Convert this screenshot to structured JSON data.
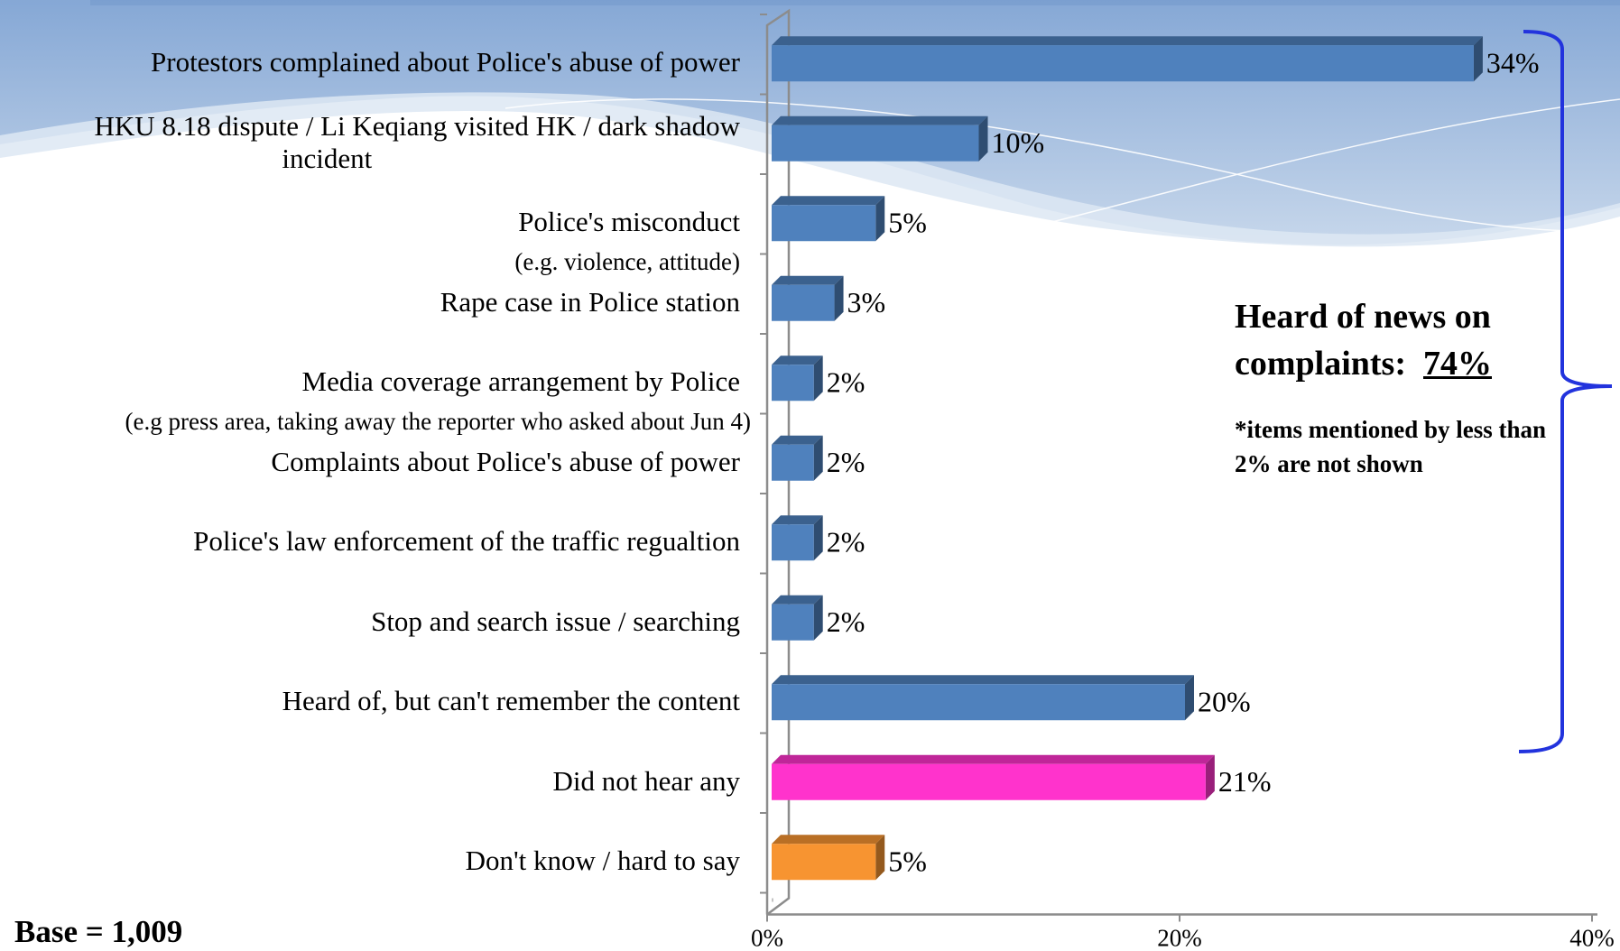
{
  "chart_data": {
    "type": "bar",
    "orientation": "horizontal",
    "categories": [
      "Protestors complained about Police's abuse of power",
      "HKU 8.18 dispute / Li Keqiang visited HK / dark shadow incident",
      "Police's misconduct",
      "Rape case in Police station",
      "Media coverage arrangement by Police",
      "Complaints about Police's abuse of power",
      "Police's law enforcement of the traffic regualtion",
      "Stop and search issue / searching",
      "Heard of, but can't remember the content",
      "Did not hear any",
      "Don't know / hard to say"
    ],
    "category_label_lines": [
      [
        "Protestors complained about Police's abuse of power"
      ],
      [
        "HKU 8.18 dispute / Li Keqiang visited HK / dark shadow",
        "incident"
      ],
      [
        "Police's misconduct"
      ],
      [
        "Rape case in Police station"
      ],
      [
        "Media coverage arrangement by Police"
      ],
      [
        "Complaints about Police's abuse of power"
      ],
      [
        "Police's law enforcement of the traffic regualtion"
      ],
      [
        "Stop and search issue / searching"
      ],
      [
        "Heard of, but can't remember the content"
      ],
      [
        "Did not hear any"
      ],
      [
        "Don't know / hard to say"
      ]
    ],
    "sub_labels": [
      {
        "text": "(e.g. violence, attitude)",
        "after_index": 2
      },
      {
        "text": "(e.g press area, taking away the reporter who asked about Jun 4)",
        "after_index": 4
      }
    ],
    "values": [
      34,
      10,
      5,
      3,
      2,
      2,
      2,
      2,
      20,
      21,
      5
    ],
    "value_labels": [
      "34%",
      "10%",
      "5%",
      "3%",
      "2%",
      "2%",
      "2%",
      "2%",
      "20%",
      "21%",
      "5%"
    ],
    "bar_colors": [
      "#4f81bd",
      "#4f81bd",
      "#4f81bd",
      "#4f81bd",
      "#4f81bd",
      "#4f81bd",
      "#4f81bd",
      "#4f81bd",
      "#4f81bd",
      "#ff33cc",
      "#f79431"
    ],
    "xlim": [
      0,
      40
    ],
    "x_ticks": [
      "0%",
      "20%",
      "40%"
    ],
    "grid": false,
    "bracket_color": "#2233dd"
  },
  "callout": {
    "title_line1": "Heard of news on",
    "title_line2_prefix": "complaints:",
    "total": "74%",
    "note": "*items mentioned by less than 2% are not shown"
  },
  "base_note": "Base = 1,009",
  "theme": {
    "header_bar": "#2f5597",
    "wave_light": "#dbe5f1",
    "wave_mid": "#a9c0e0"
  }
}
